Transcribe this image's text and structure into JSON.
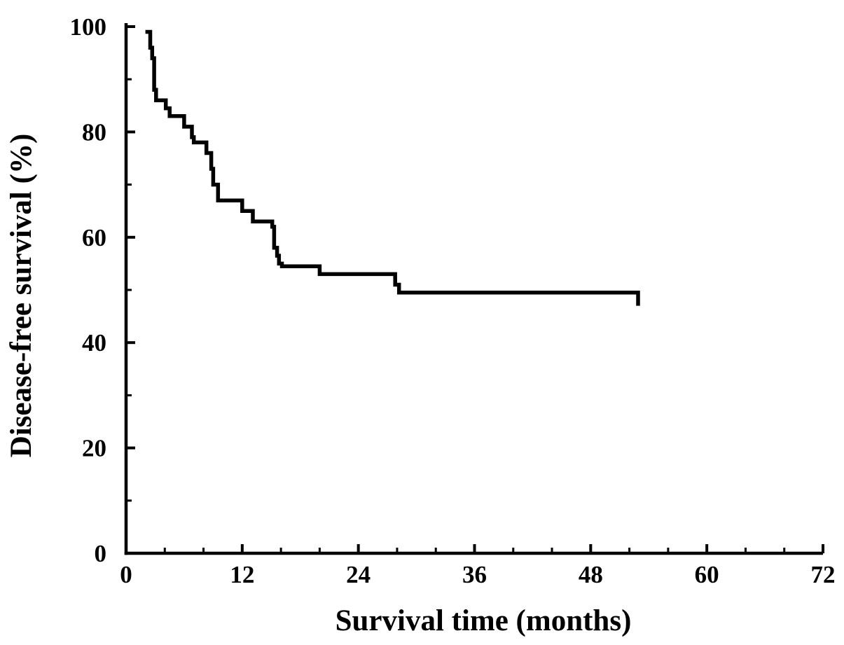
{
  "figure": {
    "background_color": "#ffffff",
    "ink_color": "#000000"
  },
  "chart_data": {
    "type": "line",
    "variant": "kaplan_meier_step_curve",
    "title": "",
    "xlabel": "Survival time (months)",
    "ylabel": "Disease-free survival (%)",
    "xlim": [
      0,
      72
    ],
    "ylim": [
      0,
      100
    ],
    "x_major_ticks": [
      0,
      12,
      24,
      36,
      48,
      60,
      72
    ],
    "x_minor_step": 4,
    "y_major_ticks": [
      0,
      20,
      40,
      60,
      80,
      100
    ],
    "y_minor_step": 10,
    "grid": false,
    "legend_position": "none",
    "series": [
      {
        "name": "Disease-free survival",
        "color": "#000000",
        "start_point": {
          "t": 2.0,
          "s": 99
        },
        "steps": [
          {
            "t": 2.5,
            "s": 96
          },
          {
            "t": 2.7,
            "s": 94
          },
          {
            "t": 2.9,
            "s": 88
          },
          {
            "t": 3.1,
            "s": 86
          },
          {
            "t": 4.1,
            "s": 84.5
          },
          {
            "t": 4.5,
            "s": 83
          },
          {
            "t": 6.0,
            "s": 81
          },
          {
            "t": 6.8,
            "s": 79
          },
          {
            "t": 7.0,
            "s": 78
          },
          {
            "t": 8.3,
            "s": 76
          },
          {
            "t": 8.8,
            "s": 73
          },
          {
            "t": 9.0,
            "s": 70
          },
          {
            "t": 9.5,
            "s": 67
          },
          {
            "t": 12.0,
            "s": 65
          },
          {
            "t": 13.1,
            "s": 63
          },
          {
            "t": 15.1,
            "s": 62
          },
          {
            "t": 15.3,
            "s": 58
          },
          {
            "t": 15.6,
            "s": 56.5
          },
          {
            "t": 15.8,
            "s": 55
          },
          {
            "t": 16.1,
            "s": 54.5
          },
          {
            "t": 20.0,
            "s": 53
          },
          {
            "t": 27.8,
            "s": 51
          },
          {
            "t": 28.2,
            "s": 49.5
          },
          {
            "t": 52.9,
            "s": 47
          }
        ]
      }
    ]
  }
}
